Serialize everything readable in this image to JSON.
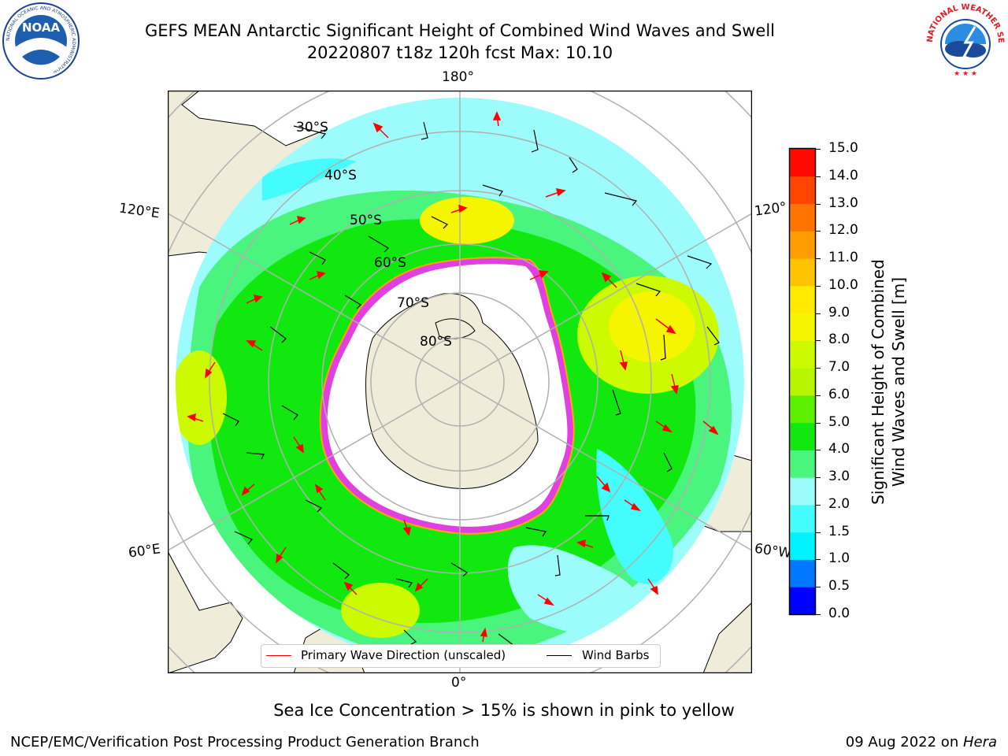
{
  "title": {
    "line1": "GEFS MEAN Antarctic Significant Height of Combined Wind Waves and Swell",
    "line2": "20220807 t18z 120h fcst   Max: 10.10"
  },
  "logos": {
    "noaa": "NOAA",
    "nws_arc": "NATIONAL WEATHER SERVICE",
    "noaa_ring": "NATIONAL OCEANIC AND ATMOSPHERIC ADMINISTRATION"
  },
  "map": {
    "longitude_labels": {
      "top": "180°",
      "bottom": "0°",
      "upper_left": "120°E",
      "upper_right": "120°",
      "lower_left": "60°E",
      "lower_right": "60°W"
    },
    "latitude_labels": [
      "30°S",
      "40°S",
      "50°S",
      "60°S",
      "70°S",
      "80°S"
    ]
  },
  "legend": {
    "wave": "Primary Wave Direction (unscaled)",
    "wind": "Wind Barbs",
    "wave_color": "#ff0000",
    "wind_color": "#000000"
  },
  "colorbar": {
    "label_line1": "Significant Height of Combined",
    "label_line2": "Wind Waves and Swell [m]",
    "ticks": [
      "0.0",
      "0.5",
      "1.0",
      "1.5",
      "2.0",
      "3.0",
      "4.0",
      "5.0",
      "6.0",
      "7.0",
      "8.0",
      "9.0",
      "10.0",
      "11.0",
      "12.0",
      "13.0",
      "14.0",
      "15.0"
    ],
    "colors": [
      "#0000ff",
      "#0077ff",
      "#00f2ff",
      "#45fcfc",
      "#9cfcfc",
      "#49f57c",
      "#10e810",
      "#5cf000",
      "#b8f500",
      "#ccfa00",
      "#f5f500",
      "#ffea00",
      "#ffc400",
      "#ff9d00",
      "#ff7300",
      "#ff4500",
      "#ff0a00"
    ]
  },
  "caption": "Sea Ice Concentration > 15% is shown in pink to yellow",
  "footer": {
    "left": "NCEP/EMC/Verification Post Processing Product Generation Branch",
    "right_prefix": "09 Aug 2022 on ",
    "right_host": "Hera"
  }
}
